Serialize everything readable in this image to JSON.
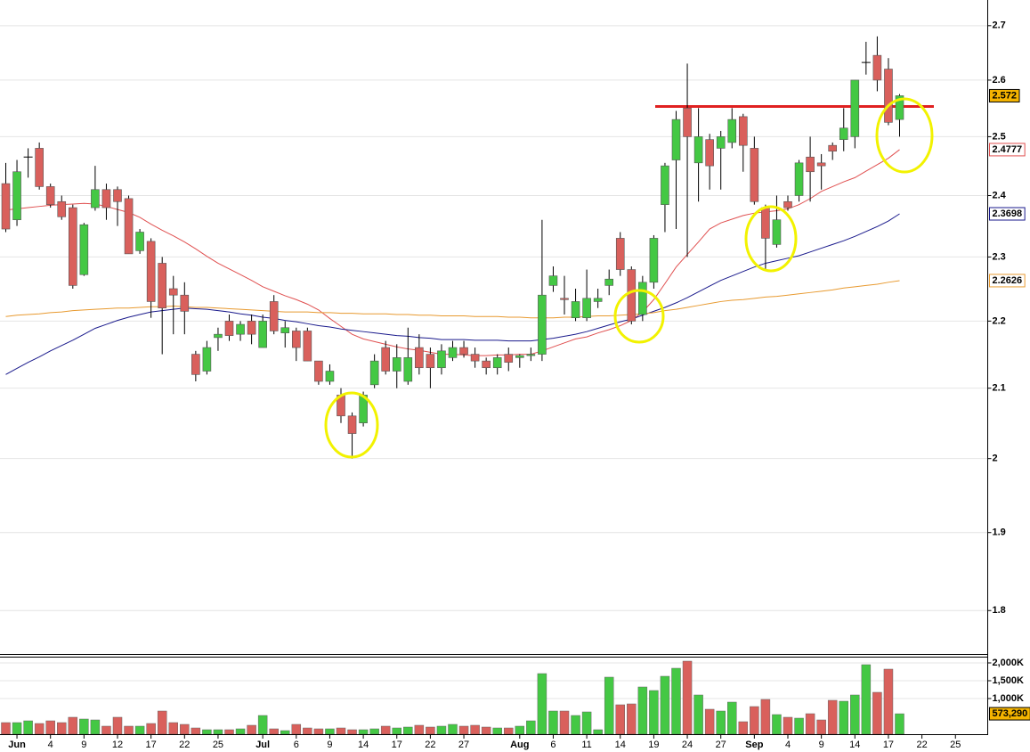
{
  "chart_data": [
    {
      "type": "candlestick",
      "categories": [
        null,
        "Jun",
        null,
        null,
        "4",
        null,
        null,
        "9",
        null,
        null,
        "12",
        null,
        null,
        "17",
        null,
        null,
        "22",
        null,
        null,
        "25",
        null,
        null,
        null,
        "Jul",
        null,
        null,
        "6",
        null,
        null,
        "9",
        null,
        null,
        "14",
        null,
        null,
        "17",
        null,
        null,
        "22",
        null,
        null,
        "27",
        null,
        null,
        null,
        null,
        "Aug",
        null,
        null,
        "6",
        null,
        null,
        "11",
        null,
        null,
        "14",
        null,
        null,
        "19",
        null,
        null,
        "24",
        null,
        null,
        "27",
        null,
        null,
        "Sep",
        null,
        null,
        "4",
        null,
        null,
        "9",
        null,
        null,
        "14",
        null,
        null,
        "17",
        null,
        null,
        "22",
        null,
        null,
        "25"
      ],
      "open": [
        2.42,
        2.36,
        2.465,
        2.48,
        2.415,
        2.39,
        2.38,
        2.272,
        2.38,
        2.41,
        2.41,
        2.395,
        2.31,
        2.325,
        2.29,
        2.25,
        2.24,
        2.15,
        2.125,
        2.175,
        2.2,
        2.18,
        2.2,
        2.16,
        2.23,
        2.182,
        2.185,
        2.185,
        2.14,
        2.11,
        2.09,
        2.06,
        2.05,
        2.105,
        2.16,
        2.125,
        2.11,
        2.16,
        2.15,
        2.13,
        2.145,
        2.16,
        2.15,
        2.14,
        2.13,
        2.15,
        2.145,
        2.148,
        2.15,
        2.255,
        2.235,
        2.205,
        2.205,
        2.23,
        2.255,
        2.33,
        2.28,
        2.21,
        2.26,
        2.385,
        2.46,
        2.55,
        2.455,
        2.495,
        2.48,
        2.49,
        2.535,
        2.48,
        2.38,
        2.32,
        2.39,
        2.4,
        2.465,
        2.455,
        2.485,
        2.495,
        2.5,
        2.632,
        2.645,
        2.62,
        2.53,
        null,
        null,
        null,
        null,
        null
      ],
      "high": [
        2.455,
        2.46,
        2.48,
        2.49,
        2.42,
        2.4,
        2.385,
        2.355,
        2.45,
        2.42,
        2.415,
        2.4,
        2.345,
        2.33,
        2.3,
        2.27,
        2.26,
        2.155,
        2.17,
        2.19,
        2.21,
        2.2,
        2.21,
        2.21,
        2.24,
        2.2,
        2.19,
        2.19,
        2.14,
        2.135,
        2.1,
        2.065,
        2.095,
        2.15,
        2.17,
        2.165,
        2.19,
        2.18,
        2.16,
        2.165,
        2.17,
        2.17,
        2.16,
        2.145,
        2.15,
        2.16,
        2.15,
        2.16,
        2.36,
        2.285,
        2.27,
        2.25,
        2.28,
        2.25,
        2.28,
        2.34,
        2.285,
        2.27,
        2.335,
        2.455,
        2.545,
        2.63,
        2.55,
        2.505,
        2.51,
        2.55,
        2.54,
        2.5,
        2.385,
        2.4,
        2.4,
        2.46,
        2.5,
        2.47,
        2.49,
        2.55,
        2.6,
        2.67,
        2.68,
        2.64,
        2.575,
        null,
        null,
        null,
        null,
        null
      ],
      "low": [
        2.34,
        2.35,
        2.43,
        2.41,
        2.38,
        2.36,
        2.25,
        2.27,
        2.375,
        2.36,
        2.35,
        2.305,
        2.305,
        2.205,
        2.15,
        2.18,
        2.18,
        2.11,
        2.12,
        2.155,
        2.17,
        2.17,
        2.165,
        2.16,
        2.18,
        2.16,
        2.14,
        2.14,
        2.105,
        2.105,
        2.05,
        2.0,
        2.045,
        2.1,
        2.12,
        2.1,
        2.105,
        2.12,
        2.1,
        2.12,
        2.14,
        2.145,
        2.13,
        2.12,
        2.12,
        2.125,
        2.13,
        2.14,
        2.14,
        2.245,
        2.21,
        2.2,
        2.2,
        2.22,
        2.24,
        2.27,
        2.195,
        2.2,
        2.25,
        2.34,
        2.345,
        2.3,
        2.39,
        2.41,
        2.41,
        2.48,
        2.44,
        2.385,
        2.28,
        2.315,
        2.375,
        2.39,
        2.39,
        2.41,
        2.46,
        2.475,
        2.48,
        2.61,
        2.58,
        2.52,
        2.5,
        null,
        null,
        null,
        null,
        null
      ],
      "close": [
        2.345,
        2.44,
        2.465,
        2.415,
        2.385,
        2.365,
        2.255,
        2.352,
        2.41,
        2.38,
        2.39,
        2.305,
        2.34,
        2.23,
        2.22,
        2.24,
        2.215,
        2.12,
        2.16,
        2.18,
        2.178,
        2.195,
        2.18,
        2.2,
        2.185,
        2.19,
        2.16,
        2.14,
        2.11,
        2.125,
        2.06,
        2.035,
        2.09,
        2.14,
        2.125,
        2.145,
        2.145,
        2.13,
        2.13,
        2.155,
        2.16,
        2.15,
        2.14,
        2.13,
        2.145,
        2.138,
        2.148,
        2.15,
        2.24,
        2.27,
        2.233,
        2.23,
        2.235,
        2.235,
        2.265,
        2.28,
        2.2,
        2.26,
        2.33,
        2.45,
        2.53,
        2.5,
        2.5,
        2.45,
        2.5,
        2.53,
        2.485,
        2.39,
        2.33,
        2.36,
        2.38,
        2.455,
        2.44,
        2.45,
        2.475,
        2.515,
        2.6,
        2.632,
        2.6,
        2.525,
        2.572,
        null,
        null,
        null,
        null,
        null
      ],
      "series": [
        {
          "color": "#e05050",
          "values": [
            2.376,
            2.378,
            2.38,
            2.382,
            2.384,
            2.385,
            2.386,
            2.387,
            2.386,
            2.382,
            2.377,
            2.372,
            2.364,
            2.353,
            2.343,
            2.334,
            2.324,
            2.313,
            2.301,
            2.29,
            2.281,
            2.272,
            2.263,
            2.253,
            2.246,
            2.239,
            2.233,
            2.226,
            2.217,
            2.204,
            2.192,
            2.18,
            2.173,
            2.169,
            2.165,
            2.161,
            2.158,
            2.156,
            2.153,
            2.15,
            2.15,
            2.149,
            2.148,
            2.148,
            2.149,
            2.149,
            2.15,
            2.15,
            2.155,
            2.161,
            2.167,
            2.173,
            2.176,
            2.182,
            2.187,
            2.193,
            2.201,
            2.214,
            2.233,
            2.258,
            2.284,
            2.304,
            2.324,
            2.345,
            2.355,
            2.361,
            2.367,
            2.371,
            2.373,
            2.375,
            2.378,
            2.385,
            2.395,
            2.407,
            2.415,
            2.423,
            2.43,
            2.441,
            2.452,
            2.463,
            2.4777,
            null,
            null,
            null,
            null,
            null
          ]
        },
        {
          "color": "#1a1a8c",
          "values": [
            2.12,
            2.129,
            2.138,
            2.146,
            2.155,
            2.163,
            2.171,
            2.18,
            2.189,
            2.195,
            2.201,
            2.206,
            2.21,
            2.214,
            2.216,
            2.218,
            2.22,
            2.219,
            2.218,
            2.216,
            2.214,
            2.211,
            2.209,
            2.206,
            2.204,
            2.201,
            2.199,
            2.196,
            2.193,
            2.191,
            2.188,
            2.186,
            2.184,
            2.182,
            2.18,
            2.178,
            2.177,
            2.175,
            2.174,
            2.172,
            2.172,
            2.172,
            2.171,
            2.171,
            2.171,
            2.17,
            2.17,
            2.17,
            2.172,
            2.174,
            2.177,
            2.18,
            2.184,
            2.189,
            2.194,
            2.199,
            2.203,
            2.209,
            2.215,
            2.221,
            2.228,
            2.236,
            2.245,
            2.254,
            2.263,
            2.27,
            2.277,
            2.284,
            2.29,
            2.294,
            2.298,
            2.302,
            2.308,
            2.314,
            2.32,
            2.326,
            2.333,
            2.341,
            2.349,
            2.358,
            2.3698,
            null,
            null,
            null,
            null,
            null
          ]
        },
        {
          "color": "#e89a30",
          "values": [
            2.207,
            2.209,
            2.21,
            2.211,
            2.213,
            2.214,
            2.216,
            2.217,
            2.218,
            2.219,
            2.22,
            2.22,
            2.221,
            2.222,
            2.222,
            2.223,
            2.222,
            2.221,
            2.221,
            2.22,
            2.219,
            2.218,
            2.217,
            2.216,
            2.215,
            2.214,
            2.214,
            2.214,
            2.213,
            2.213,
            2.212,
            2.212,
            2.211,
            2.211,
            2.211,
            2.21,
            2.21,
            2.209,
            2.209,
            2.208,
            2.208,
            2.208,
            2.207,
            2.207,
            2.207,
            2.206,
            2.206,
            2.205,
            2.205,
            2.205,
            2.206,
            2.206,
            2.207,
            2.208,
            2.208,
            2.209,
            2.21,
            2.211,
            2.213,
            2.216,
            2.218,
            2.221,
            2.224,
            2.227,
            2.23,
            2.232,
            2.233,
            2.235,
            2.237,
            2.238,
            2.24,
            2.242,
            2.244,
            2.246,
            2.248,
            2.251,
            2.253,
            2.255,
            2.257,
            2.26,
            2.2626,
            null,
            null,
            null,
            null,
            null
          ]
        }
      ],
      "hlines": [
        {
          "value": 2.553,
          "color": "#e02020"
        }
      ],
      "up_color": "#44c844",
      "down_color": "#d9605c",
      "doji_color": "#000000",
      "last_value_color": "#f5b400",
      "log_scale": true,
      "ylim": [
        1.7466,
        2.7485
      ],
      "yticks": [
        1.8,
        1.9,
        2,
        2.1,
        2.2,
        2.3,
        2.4,
        2.5,
        2.6,
        2.7
      ],
      "grid": true
    },
    {
      "type": "bar",
      "values": [
        325000,
        325000,
        375000,
        300000,
        375000,
        325000,
        475000,
        425000,
        400000,
        225000,
        475000,
        225000,
        225000,
        300000,
        650000,
        325000,
        275000,
        175000,
        125000,
        125000,
        125000,
        150000,
        250000,
        525000,
        150000,
        100000,
        275000,
        175000,
        150000,
        150000,
        175000,
        125000,
        125000,
        150000,
        225000,
        175000,
        200000,
        250000,
        200000,
        225000,
        275000,
        225000,
        250000,
        200000,
        175000,
        175000,
        225000,
        375000,
        1700000,
        650000,
        650000,
        525000,
        625000,
        125000,
        1600000,
        825000,
        850000,
        1325000,
        1225000,
        1625000,
        1850000,
        2050000,
        1100000,
        700000,
        650000,
        900000,
        350000,
        775000,
        975000,
        550000,
        475000,
        450000,
        575000,
        400000,
        950000,
        925000,
        1100000,
        1950000,
        1175000,
        1825000,
        573290,
        null,
        null,
        null,
        null,
        null
      ],
      "value_labels": [
        null,
        null,
        null,
        null,
        null,
        null,
        null,
        null,
        null,
        null,
        null,
        null,
        null,
        null,
        null,
        null,
        null,
        null,
        null,
        null,
        null,
        null,
        null,
        null,
        null,
        null,
        null,
        null,
        null,
        null,
        null,
        null,
        null,
        null,
        null,
        null,
        null,
        null,
        null,
        null,
        null,
        null,
        null,
        null,
        null,
        null,
        null,
        null,
        null,
        null,
        null,
        null,
        null,
        null,
        null,
        null,
        null,
        null,
        null,
        null,
        null,
        null,
        null,
        null,
        null,
        null,
        null,
        null,
        null,
        null,
        null,
        null,
        null,
        null,
        null,
        null,
        null,
        null,
        null,
        null,
        "573,290",
        null,
        null,
        null,
        null,
        null
      ],
      "up_color": "#44c844",
      "down_color": "#d9605c",
      "last_value_color": "#f5b400",
      "ylim": [
        0,
        2150000
      ],
      "yticks": [
        {
          "value": 1000000,
          "label": "1,000K"
        },
        {
          "value": 1500000,
          "label": "1,500K"
        },
        {
          "value": 2000000,
          "label": "2,000K"
        }
      ],
      "grid": true
    }
  ]
}
